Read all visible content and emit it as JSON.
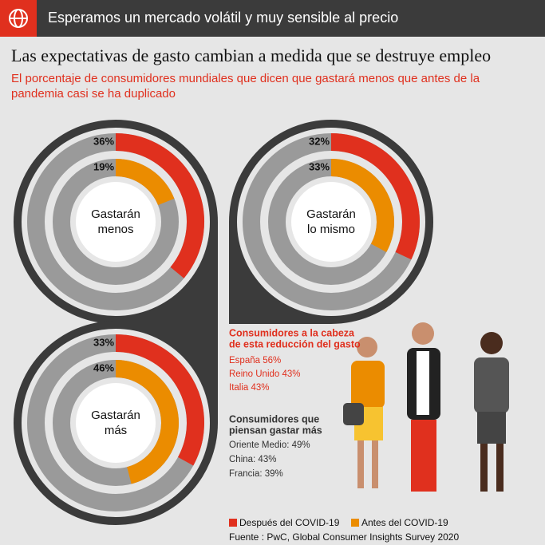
{
  "header": "Esperamos un mercado volátil y muy sensible al precio",
  "title": "Las expectativas de gasto cambian a medida que se destruye empleo",
  "subtitle": [
    "El porcentaje de consumidores mundiales que dicen que gastará menos que antes de la",
    "pandemia casi se ha duplicado"
  ],
  "legend": [
    {
      "name": "Después del COVID-19",
      "color": "#e0301e"
    },
    {
      "name": "Antes del COVID-19",
      "color": "#eb8c00"
    }
  ],
  "chart_data": [
    {
      "type": "donut",
      "label": [
        "Gastarán",
        "menos"
      ],
      "values": [
        36,
        19
      ],
      "value_labels": [
        "36%",
        "19%"
      ]
    },
    {
      "type": "donut",
      "label": [
        "Gastarán",
        "lo mismo"
      ],
      "values": [
        32,
        33
      ],
      "value_labels": [
        "32%",
        "33%"
      ]
    },
    {
      "type": "donut",
      "label": [
        "Gastarán",
        "más"
      ],
      "values": [
        33,
        46
      ],
      "value_labels": [
        "33%",
        "46%"
      ]
    }
  ],
  "reduction": {
    "heading": [
      "Consumidores a la cabeza",
      "de esta reducción del gasto"
    ],
    "items": [
      "España 56%",
      "Reino Unido 43%",
      "Italia 43%"
    ]
  },
  "more": {
    "heading": [
      "Consumidores que",
      "piensan gastar más"
    ],
    "items": [
      "Oriente Medio: 49%",
      "China: 43%",
      "Francia: 39%"
    ]
  },
  "source": "Fuente : PwC, Global Consumer Insights Survey 2020"
}
